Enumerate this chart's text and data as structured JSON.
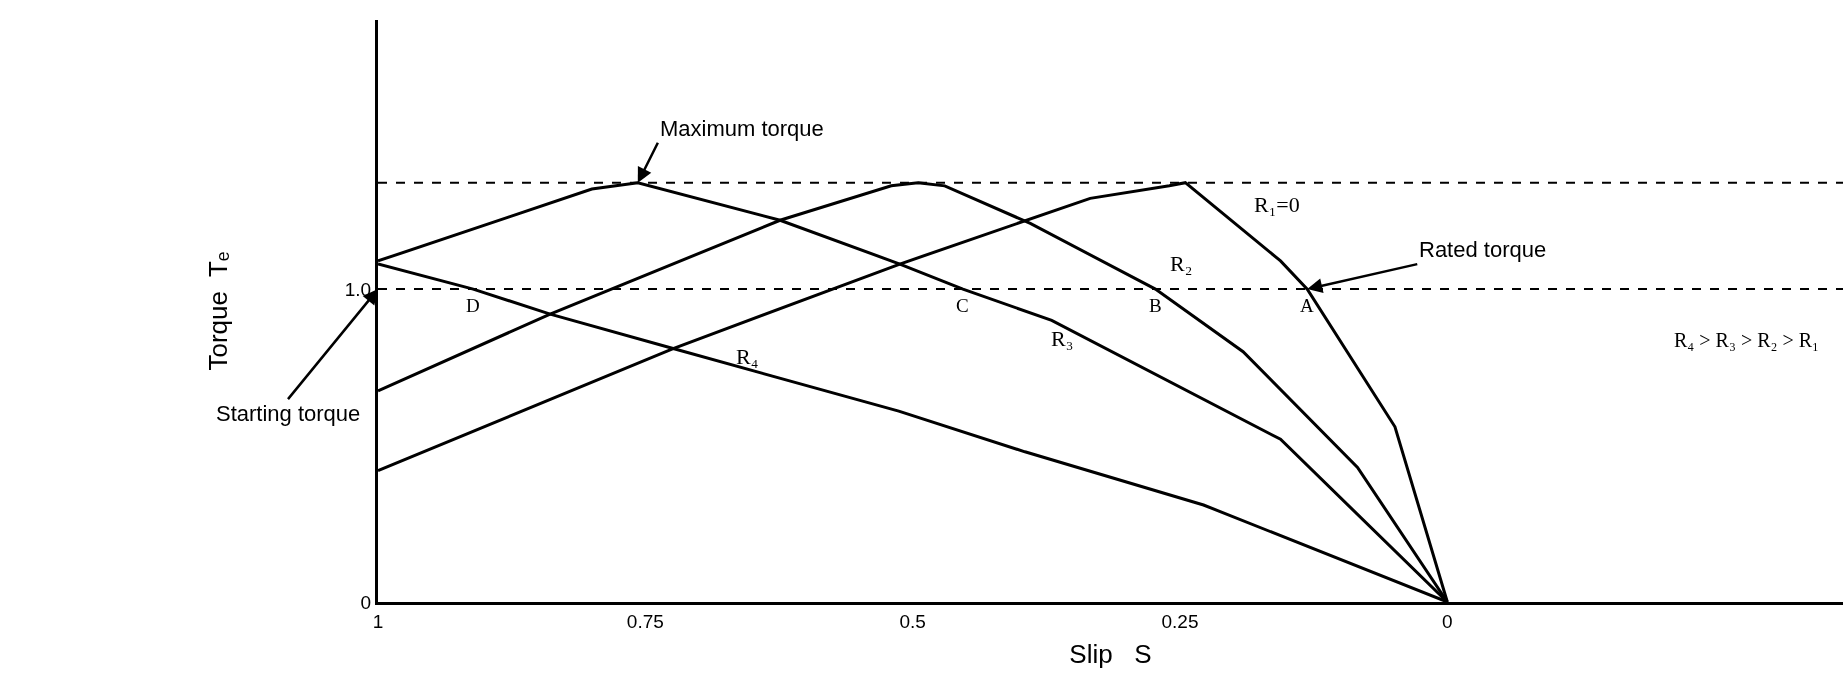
{
  "chart_data": {
    "type": "line",
    "xlabel": "Slip   S",
    "ylabel": "Torque  Tₑ",
    "xlim": [
      1,
      -0.37
    ],
    "ylim": [
      0,
      1.86
    ],
    "xticks": [
      {
        "value": 1,
        "label": "1"
      },
      {
        "value": 0.75,
        "label": "0.75"
      },
      {
        "value": 0.5,
        "label": "0.5"
      },
      {
        "value": 0.25,
        "label": "0.25"
      },
      {
        "value": 0,
        "label": "0"
      }
    ],
    "yticks": [
      {
        "value": 0,
        "label": "0"
      },
      {
        "value": 1,
        "label": "1.0"
      }
    ],
    "series": [
      {
        "name": "R₁=0",
        "color": "#000000",
        "x": [
          1,
          0.724,
          0.512,
          0.334,
          0.26,
          0.245,
          0.156,
          0.131,
          0.049,
          0
        ],
        "values": [
          0.42,
          0.81,
          1.08,
          1.29,
          1.33,
          1.34,
          1.09,
          1.0,
          0.56,
          0
        ]
      },
      {
        "name": "R₂",
        "color": "#000000",
        "x": [
          1,
          0.839,
          0.624,
          0.52,
          0.495,
          0.47,
          0.39,
          0.273,
          0.191,
          0.084,
          0
        ],
        "values": [
          0.675,
          0.92,
          1.22,
          1.33,
          1.34,
          1.33,
          1.21,
          1.0,
          0.8,
          0.43,
          0
        ]
      },
      {
        "name": "R₃",
        "color": "#000000",
        "x": [
          1,
          0.878,
          0.8,
          0.757,
          0.624,
          0.512,
          0.453,
          0.37,
          0.156,
          0
        ],
        "values": [
          1.09,
          1.23,
          1.32,
          1.34,
          1.22,
          1.08,
          1.0,
          0.9,
          0.52,
          0
        ]
      },
      {
        "name": "R₄",
        "color": "#000000",
        "x": [
          1,
          0.911,
          0.839,
          0.724,
          0.513,
          0.395,
          0.228,
          0
        ],
        "values": [
          1.08,
          1.0,
          0.92,
          0.81,
          0.61,
          0.48,
          0.31,
          0
        ]
      }
    ],
    "ref_lines": [
      {
        "axis": "y",
        "value": 1.0,
        "color": "#000000",
        "line_style": "dashed"
      },
      {
        "axis": "y",
        "value": 1.34,
        "color": "#000000",
        "line_style": "dashed"
      }
    ],
    "annotations": [
      {
        "text": "Maximum torque",
        "x": 0.757,
        "y": 1.34
      },
      {
        "text": "Rated torque",
        "x": 0.131,
        "y": 1.0
      },
      {
        "text": "Starting torque",
        "x": 1,
        "y": 1.0
      },
      {
        "text": "D",
        "x": 0.911,
        "y": 1.0
      },
      {
        "text": "C",
        "x": 0.453,
        "y": 1.0
      },
      {
        "text": "B",
        "x": 0.273,
        "y": 1.0
      },
      {
        "text": "A",
        "x": 0.131,
        "y": 1.0
      },
      "R₄ > R₃ > R₂ > R₁"
    ],
    "legend": false,
    "marker": "none",
    "line_style": "solid"
  }
}
